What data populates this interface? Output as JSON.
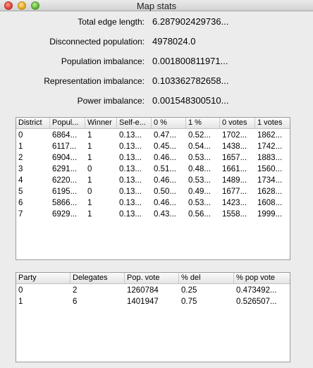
{
  "window": {
    "title": "Map stats"
  },
  "stats": [
    {
      "label": "Total edge length:",
      "value": "6.287902429736..."
    },
    {
      "label": "Disconnected population:",
      "value": "4978024.0"
    },
    {
      "label": "Population imbalance:",
      "value": "0.001800811971..."
    },
    {
      "label": "Representation imbalance:",
      "value": "0.103362782658..."
    },
    {
      "label": "Power imbalance:",
      "value": "0.001548300510..."
    }
  ],
  "district_table": {
    "headers": [
      "District",
      "Popul...",
      "Winner",
      "Self-e...",
      "0 %",
      "1 %",
      "0 votes",
      "1 votes"
    ],
    "rows": [
      [
        "0",
        "6864...",
        "1",
        "0.13...",
        "0.47...",
        "0.52...",
        "1702...",
        "1862..."
      ],
      [
        "1",
        "6117...",
        "1",
        "0.13...",
        "0.45...",
        "0.54...",
        "1438...",
        "1742..."
      ],
      [
        "2",
        "6904...",
        "1",
        "0.13...",
        "0.46...",
        "0.53...",
        "1657...",
        "1883..."
      ],
      [
        "3",
        "6291...",
        "0",
        "0.13...",
        "0.51...",
        "0.48...",
        "1661...",
        "1560..."
      ],
      [
        "4",
        "6220...",
        "1",
        "0.13...",
        "0.46...",
        "0.53...",
        "1489...",
        "1734..."
      ],
      [
        "5",
        "6195...",
        "0",
        "0.13...",
        "0.50...",
        "0.49...",
        "1677...",
        "1628..."
      ],
      [
        "6",
        "5866...",
        "1",
        "0.13...",
        "0.46...",
        "0.53...",
        "1423...",
        "1608..."
      ],
      [
        "7",
        "6929...",
        "1",
        "0.13...",
        "0.43...",
        "0.56...",
        "1558...",
        "1999..."
      ]
    ]
  },
  "party_table": {
    "headers": [
      "Party",
      "Delegates",
      "Pop. vote",
      "% del",
      "% pop vote"
    ],
    "rows": [
      [
        "0",
        "2",
        "1260784",
        "0.25",
        "0.473492..."
      ],
      [
        "1",
        "6",
        "1401947",
        "0.75",
        "0.526507..."
      ]
    ]
  }
}
